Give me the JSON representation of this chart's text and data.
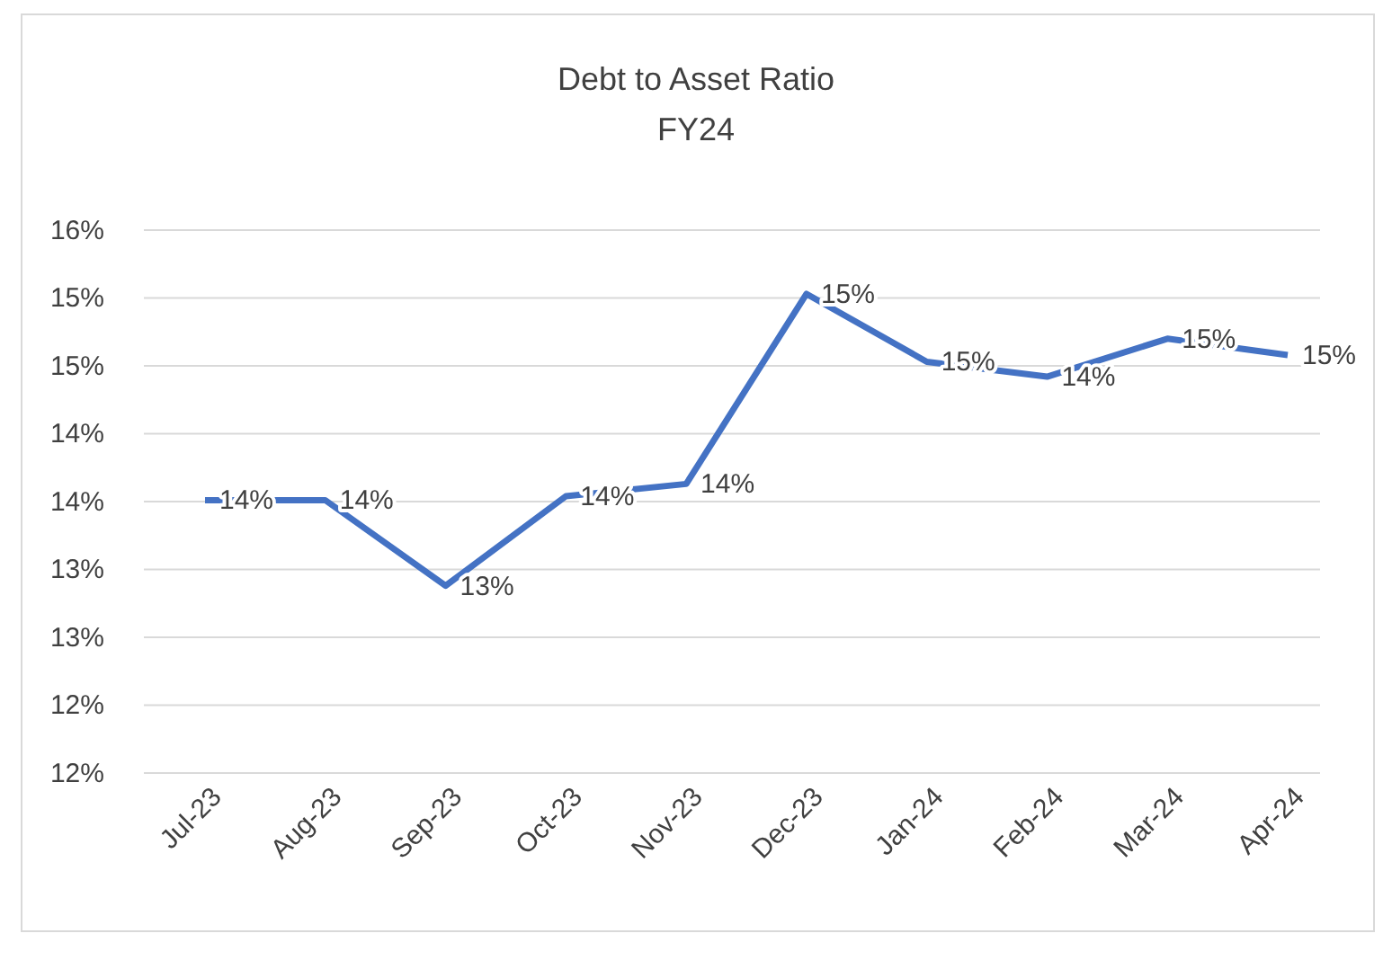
{
  "chart_data": {
    "type": "line",
    "title": "Debt to Asset Ratio",
    "subtitle": "FY24",
    "categories": [
      "Jul-23",
      "Aug-23",
      "Sep-23",
      "Oct-23",
      "Nov-23",
      "Dec-23",
      "Jan-24",
      "Feb-24",
      "Mar-24",
      "Apr-24"
    ],
    "series": [
      {
        "color": "#4472c4",
        "values": [
          13.51,
          13.51,
          12.88,
          13.54,
          13.63,
          15.03,
          14.53,
          14.42,
          14.7,
          14.58
        ],
        "value_labels": [
          "14%",
          "14%",
          "13%",
          "14%",
          "14%",
          "15%",
          "15%",
          "14%",
          "15%",
          "15%"
        ]
      }
    ],
    "ylim": [
      11.5,
      15.5
    ],
    "yticks": [
      {
        "value": 11.5,
        "label": "12%"
      },
      {
        "value": 12,
        "label": "12%"
      },
      {
        "value": 12.5,
        "label": "13%"
      },
      {
        "value": 13,
        "label": "13%"
      },
      {
        "value": 13.5,
        "label": "14%"
      },
      {
        "value": 14,
        "label": "14%"
      },
      {
        "value": 14.5,
        "label": "15%"
      },
      {
        "value": 15,
        "label": "15%"
      },
      {
        "value": 15.5,
        "label": "16%"
      }
    ],
    "grid": "y",
    "marker": "none",
    "line_style": "solid"
  }
}
